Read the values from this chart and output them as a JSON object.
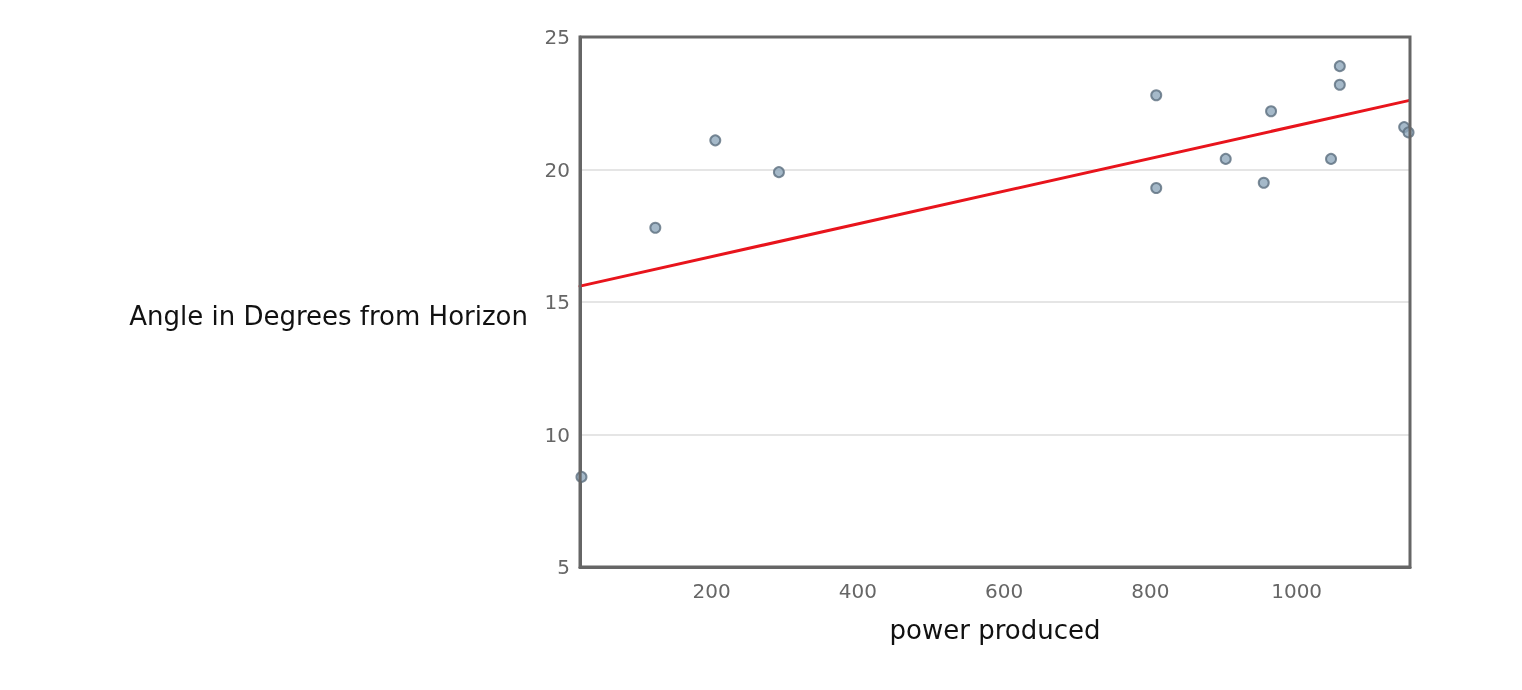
{
  "chart_data": {
    "type": "scatter",
    "xlabel": "power produced",
    "ylabel": "Angle in Degrees from Horizon",
    "xlim": [
      20,
      1155
    ],
    "xticks": [
      200,
      400,
      600,
      800,
      1000
    ],
    "ylim": [
      5,
      25
    ],
    "yticks": [
      5,
      10,
      15,
      20,
      25
    ],
    "grid": "y",
    "marker": "circle",
    "series": [
      {
        "color": "#8fa8bc",
        "x": [
          22,
          123,
          205,
          292,
          808,
          808,
          903,
          955,
          965,
          1047,
          1059,
          1059,
          1147,
          1153
        ],
        "values": [
          8.4,
          17.8,
          21.1,
          19.9,
          22.8,
          19.3,
          20.4,
          19.5,
          22.2,
          20.4,
          23.9,
          23.2,
          21.6,
          21.4
        ]
      },
      {
        "type": "line",
        "color": "#e8141c",
        "marker": "none",
        "line_style": "solid",
        "x": [
          20,
          1153
        ],
        "values": [
          15.6,
          22.6
        ]
      }
    ]
  }
}
